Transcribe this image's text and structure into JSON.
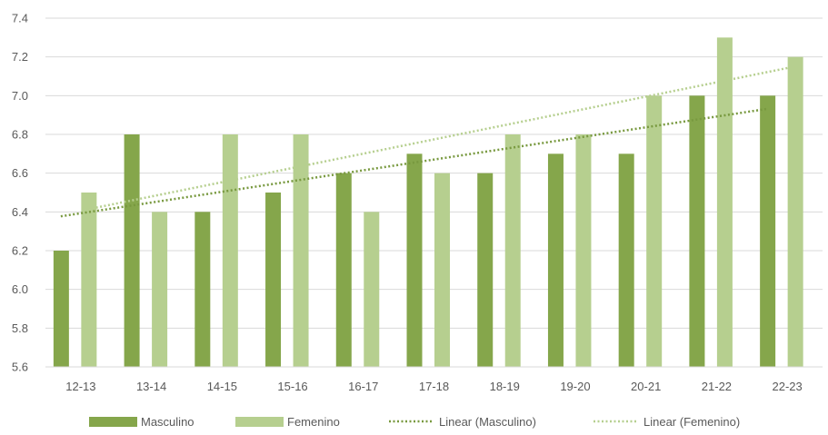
{
  "chart_data": {
    "type": "bar",
    "categories": [
      "12-13",
      "13-14",
      "14-15",
      "15-16",
      "16-17",
      "17-18",
      "18-19",
      "19-20",
      "20-21",
      "21-22",
      "22-23"
    ],
    "series": [
      {
        "name": "Masculino",
        "values": [
          6.2,
          6.8,
          6.4,
          6.5,
          6.6,
          6.7,
          6.6,
          6.7,
          6.7,
          7.0,
          7.0
        ],
        "color": "#85a64b"
      },
      {
        "name": "Femenino",
        "values": [
          6.5,
          6.4,
          6.8,
          6.8,
          6.4,
          6.6,
          6.8,
          6.8,
          7.0,
          7.3,
          7.2
        ],
        "color": "#b6cf8f"
      }
    ],
    "trendlines": [
      {
        "name": "Linear (Masculino)",
        "of": "Masculino",
        "color": "#78993f"
      },
      {
        "name": "Linear (Femenino)",
        "of": "Femenino",
        "color": "#b6cf8f"
      }
    ],
    "yticks": [
      "5.6",
      "5.8",
      "6.0",
      "6.2",
      "6.4",
      "6.6",
      "6.8",
      "7.0",
      "7.2",
      "7.4"
    ],
    "ylim": [
      5.6,
      7.4
    ],
    "grid": true,
    "legend_position": "bottom"
  }
}
